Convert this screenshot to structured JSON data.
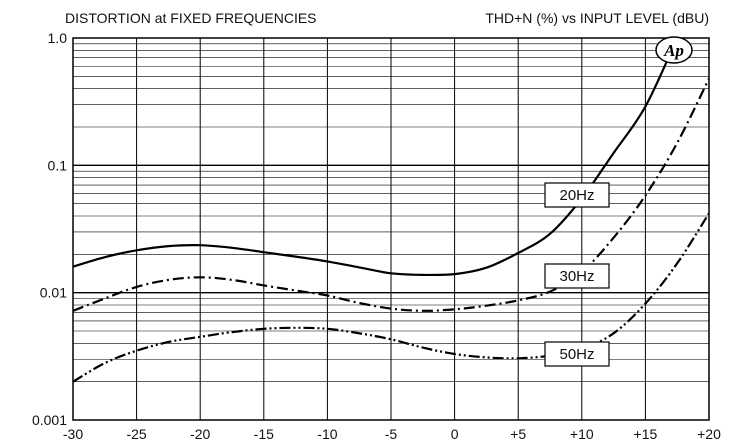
{
  "chart_data": {
    "type": "line",
    "title": "DISTORTION at FIXED FREQUENCIES",
    "subtitle": "THD+N (%) vs INPUT LEVEL (dBU)",
    "xlabel": "",
    "ylabel": "",
    "xlim": [
      -30,
      20
    ],
    "ylim": [
      0.001,
      1.0
    ],
    "yscale": "log",
    "grid": true,
    "x_ticks": [
      "-30",
      "-25",
      "-20",
      "-15",
      "-10",
      "-5",
      "0",
      "+5",
      "+10",
      "+15",
      "+20"
    ],
    "y_ticks": [
      "1.0",
      "0.1",
      "0.01",
      "0.001"
    ],
    "logo": "Ap",
    "series": [
      {
        "name": "20Hz",
        "style": "solid",
        "color": "#000000",
        "x": [
          -30,
          -27.5,
          -25,
          -22.5,
          -20,
          -17.5,
          -15,
          -12.5,
          -10,
          -7.5,
          -5,
          -2.5,
          0,
          2.5,
          5,
          7.5,
          10,
          12.5,
          15,
          17.5
        ],
        "y": [
          0.016,
          0.019,
          0.0215,
          0.0232,
          0.0236,
          0.0225,
          0.0208,
          0.0192,
          0.0176,
          0.0158,
          0.0142,
          0.0138,
          0.014,
          0.0157,
          0.0205,
          0.029,
          0.055,
          0.125,
          0.29,
          1.0
        ]
      },
      {
        "name": "30Hz",
        "style": "dash-dot",
        "color": "#000000",
        "x": [
          -30,
          -27.5,
          -25,
          -22.5,
          -20,
          -17.5,
          -15,
          -12.5,
          -10,
          -7.5,
          -5,
          -2.5,
          0,
          2.5,
          5,
          7.5,
          10,
          12.5,
          15,
          17.5,
          20
        ],
        "y": [
          0.0072,
          0.009,
          0.0111,
          0.0126,
          0.0132,
          0.0126,
          0.0114,
          0.0104,
          0.0095,
          0.0083,
          0.0075,
          0.0072,
          0.0074,
          0.0079,
          0.0087,
          0.0102,
          0.0145,
          0.027,
          0.058,
          0.15,
          0.48
        ]
      },
      {
        "name": "50Hz",
        "style": "dash-dot-dot",
        "color": "#000000",
        "x": [
          -30,
          -27.5,
          -25,
          -22.5,
          -20,
          -17.5,
          -15,
          -12.5,
          -10,
          -7.5,
          -5,
          -2.5,
          0,
          2.5,
          5,
          7.5,
          10,
          12.5,
          15,
          17.5,
          20
        ],
        "y": [
          0.002,
          0.0028,
          0.0035,
          0.0041,
          0.0045,
          0.0049,
          0.0052,
          0.0053,
          0.0052,
          0.0048,
          0.0043,
          0.0037,
          0.0033,
          0.0031,
          0.00305,
          0.0032,
          0.0036,
          0.0048,
          0.0082,
          0.017,
          0.042
        ]
      }
    ]
  }
}
